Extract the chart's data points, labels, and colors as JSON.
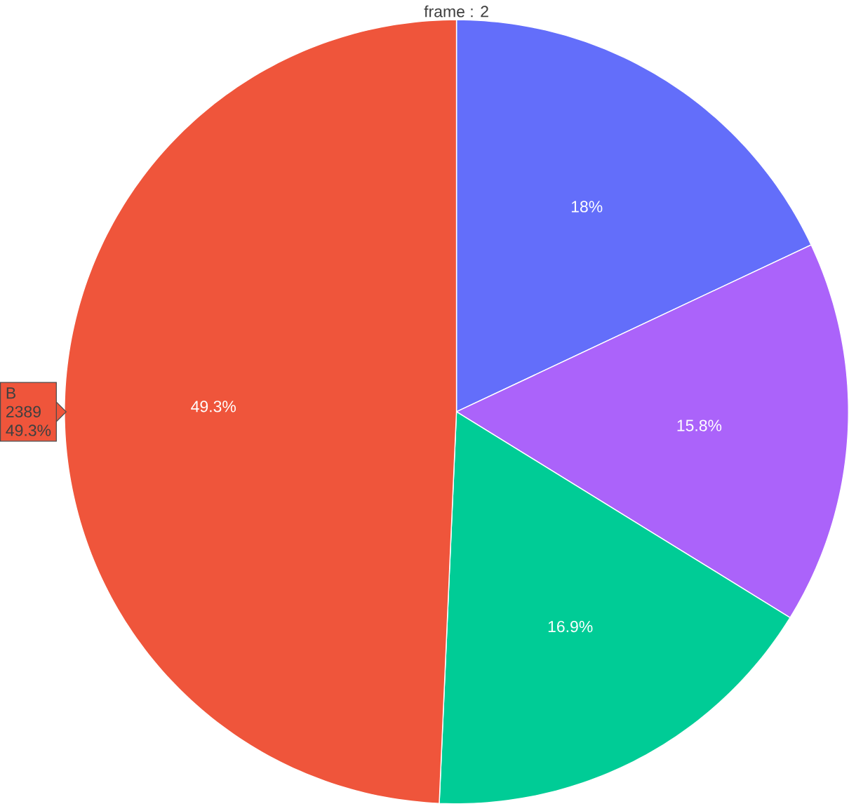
{
  "chart_data": {
    "type": "pie",
    "title": "frame : 2",
    "categories": [
      null,
      null,
      null,
      "B"
    ],
    "values": [
      18,
      15.8,
      16.9,
      49.3
    ],
    "value_labels": [
      "18%",
      "15.8%",
      "16.9%",
      "49.3%"
    ],
    "colors": [
      "#636efa",
      "#ab63fa",
      "#00cc96",
      "#ef553b"
    ],
    "annotations": [
      "2389"
    ]
  }
}
